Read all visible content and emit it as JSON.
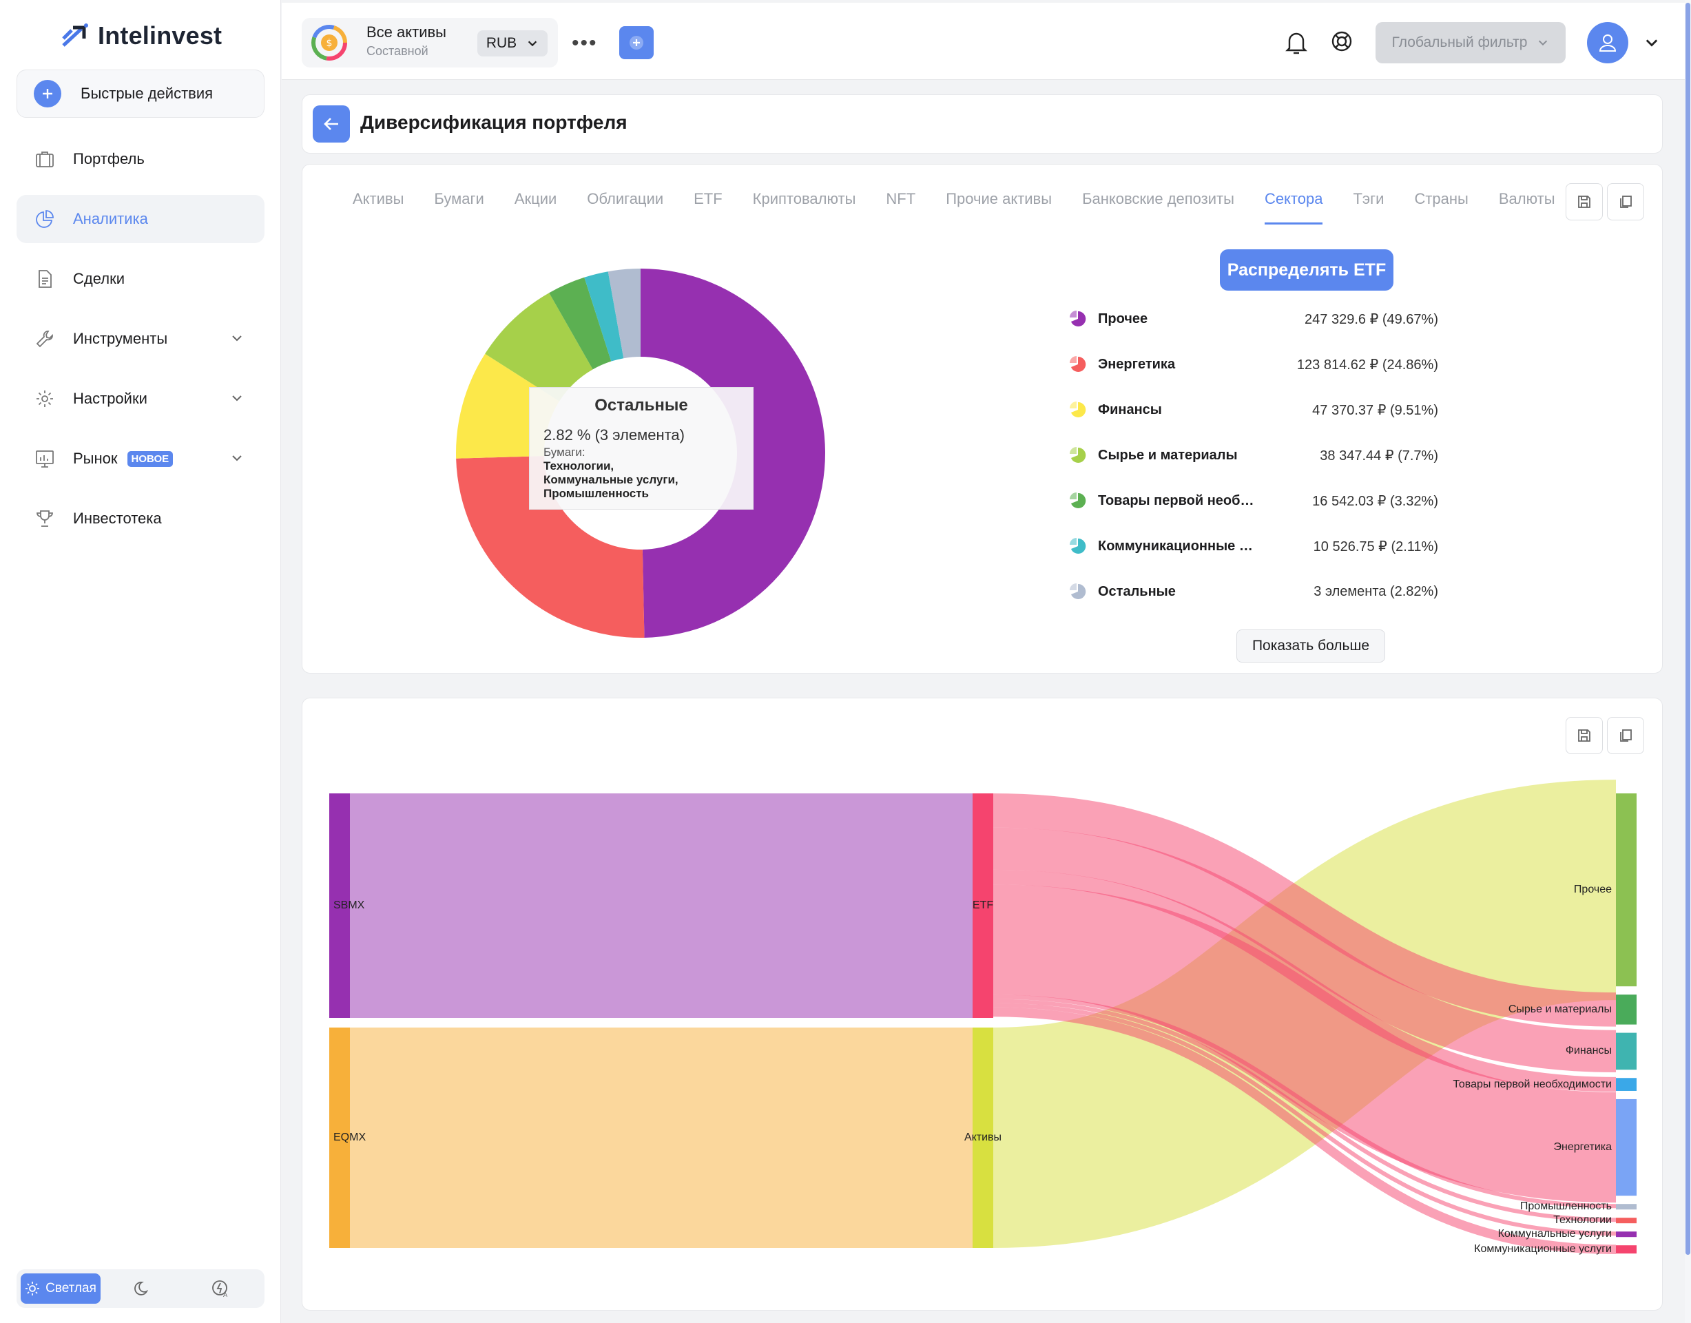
{
  "app": {
    "name": "Intelinvest"
  },
  "sidebar": {
    "quick_actions": "Быстрые действия",
    "items": [
      {
        "label": "Портфель",
        "icon": "briefcase-icon"
      },
      {
        "label": "Аналитика",
        "icon": "pie-chart-icon",
        "active": true
      },
      {
        "label": "Сделки",
        "icon": "document-icon"
      },
      {
        "label": "Инструменты",
        "icon": "wrench-icon",
        "expandable": true
      },
      {
        "label": "Настройки",
        "icon": "gear-icon",
        "expandable": true
      },
      {
        "label": "Рынок",
        "icon": "market-chart-icon",
        "badge": "НОВОЕ",
        "expandable": true
      },
      {
        "label": "Инвестотека",
        "icon": "trophy-icon"
      }
    ],
    "theme": {
      "light": "Светлая",
      "selected": "light"
    }
  },
  "header": {
    "portfolio_name": "Все активы",
    "portfolio_type": "Составной",
    "currency": "RUB",
    "global_filter": "Глобальный фильтр"
  },
  "page": {
    "title": "Диверсификация портфеля"
  },
  "tabs": [
    {
      "label": "Активы"
    },
    {
      "label": "Бумаги"
    },
    {
      "label": "Акции"
    },
    {
      "label": "Облигации"
    },
    {
      "label": "ETF"
    },
    {
      "label": "Криптовалюты"
    },
    {
      "label": "NFT"
    },
    {
      "label": "Прочие активы"
    },
    {
      "label": "Банковские депозиты"
    },
    {
      "label": "Сектора",
      "active": true
    },
    {
      "label": "Тэги"
    },
    {
      "label": "Страны"
    },
    {
      "label": "Валюты"
    }
  ],
  "distribute_etf": "Распределять ETF",
  "show_more": "Показать больше",
  "legend": [
    {
      "name": "Прочее",
      "value": "247 329.6 ₽ (49.67%)",
      "color": "#9630b0"
    },
    {
      "name": "Энергетика",
      "value": "123 814.62 ₽ (24.86%)",
      "color": "#f55e5e"
    },
    {
      "name": "Финансы",
      "value": "47 370.37 ₽ (9.51%)",
      "color": "#fce84a"
    },
    {
      "name": "Сырье и материалы",
      "value": "38 347.44 ₽ (7.7%)",
      "color": "#a6d04a"
    },
    {
      "name": "Товары первой необ…",
      "value": "16 542.03 ₽ (3.32%)",
      "color": "#5cb052"
    },
    {
      "name": "Коммуникационные …",
      "value": "10 526.75 ₽ (2.11%)",
      "color": "#3fbcc8"
    },
    {
      "name": "Остальные",
      "value": "3 элемента (2.82%)",
      "color": "#b0bcd0"
    }
  ],
  "chart_data": [
    {
      "type": "pie",
      "slices": [
        {
          "name": "Прочее",
          "value": 49.67,
          "color": "#9630b0"
        },
        {
          "name": "Энергетика",
          "value": 24.86,
          "color": "#f55e5e"
        },
        {
          "name": "Финансы",
          "value": 9.51,
          "color": "#fce84a"
        },
        {
          "name": "Сырье и материалы",
          "value": 7.7,
          "color": "#a6d04a"
        },
        {
          "name": "Товары первой необ…",
          "value": 3.32,
          "color": "#5cb052"
        },
        {
          "name": "Коммуникационные …",
          "value": 2.11,
          "color": "#3fbcc8"
        },
        {
          "name": "Остальные",
          "value": 2.82,
          "color": "#b0bcd0"
        }
      ],
      "tooltip": {
        "title": "Остальные",
        "percent": "2.82 % (3 элемента)",
        "subtitle": "Бумаги:",
        "lines": [
          "Технологии,",
          "Коммунальные услуги,",
          "Промышленность"
        ]
      }
    },
    {
      "type": "sankey",
      "nodes": [
        {
          "name": "SBMX",
          "color": "#9630b0"
        },
        {
          "name": "EQMX",
          "color": "#f7b03a"
        },
        {
          "name": "ETF",
          "color": "#f5446e"
        },
        {
          "name": "Активы",
          "color": "#d8e040"
        },
        {
          "name": "Прочее",
          "color": "#8cc152"
        },
        {
          "name": "Сырье и материалы",
          "color": "#4aab5a"
        },
        {
          "name": "Финансы",
          "color": "#3fb4b0"
        },
        {
          "name": "Товары первой необходимости",
          "color": "#3aa8e8"
        },
        {
          "name": "Энергетика",
          "color": "#7aa4f5"
        },
        {
          "name": "Промышленность",
          "color": "#b0bcd0"
        },
        {
          "name": "Технологии",
          "color": "#f55e5e"
        },
        {
          "name": "Коммунальные услуги",
          "color": "#9630b0"
        },
        {
          "name": "Коммуникационные услуги",
          "color": "#f5446e"
        }
      ],
      "links": [
        {
          "source": "SBMX",
          "target": "ETF",
          "value": 50.6
        },
        {
          "source": "EQMX",
          "target": "Активы",
          "value": 49.67
        },
        {
          "source": "Активы",
          "target": "Прочее",
          "value": 49.67
        },
        {
          "source": "ETF",
          "target": "Сырье и материалы",
          "value": 7.7
        },
        {
          "source": "ETF",
          "target": "Финансы",
          "value": 9.51
        },
        {
          "source": "ETF",
          "target": "Товары первой необходимости",
          "value": 3.32
        },
        {
          "source": "ETF",
          "target": "Энергетика",
          "value": 24.86
        },
        {
          "source": "ETF",
          "target": "Промышленность",
          "value": 0.94
        },
        {
          "source": "ETF",
          "target": "Технологии",
          "value": 0.94
        },
        {
          "source": "ETF",
          "target": "Коммунальные услуги",
          "value": 0.94
        },
        {
          "source": "ETF",
          "target": "Коммуникационные услуги",
          "value": 2.11
        }
      ]
    }
  ]
}
